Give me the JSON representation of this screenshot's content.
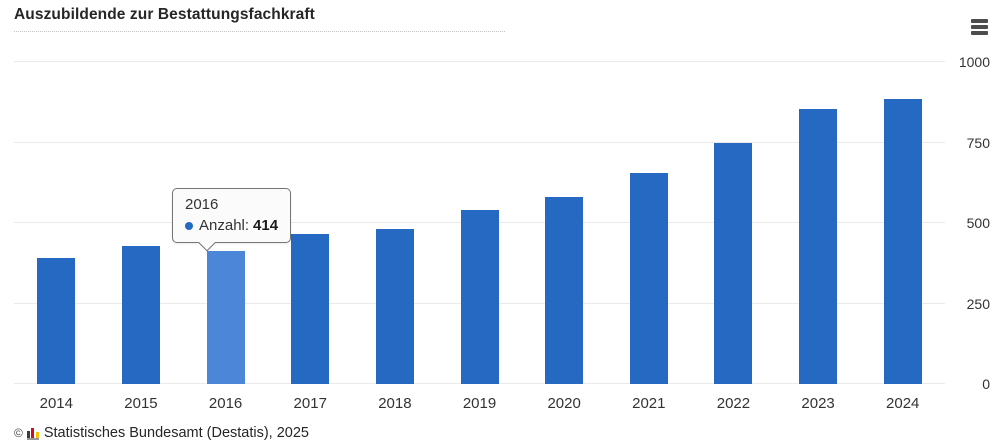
{
  "title": "Auszubildende zur Bestattungsfachkraft",
  "menu": {
    "icon": "hamburger-icon"
  },
  "tooltip": {
    "year": "2016",
    "series_label": "Anzahl:",
    "value": "414"
  },
  "footer": {
    "copyright": "©",
    "source": "Statistisches Bundesamt (Destatis), 2025"
  },
  "colors": {
    "bar": "#2569c3",
    "bar_highlight": "#4c86d9",
    "grid": "#eaeaea",
    "tooltip_marker": "#2569c3"
  },
  "chart_data": {
    "type": "bar",
    "title": "Auszubildende zur Bestattungsfachkraft",
    "categories": [
      "2014",
      "2015",
      "2016",
      "2017",
      "2018",
      "2019",
      "2020",
      "2021",
      "2022",
      "2023",
      "2024"
    ],
    "series": [
      {
        "name": "Anzahl",
        "values": [
          390,
          430,
          414,
          465,
          480,
          540,
          580,
          655,
          750,
          855,
          885
        ]
      }
    ],
    "exact_labeled_point": {
      "category": "2016",
      "value": 414
    },
    "highlight_index": 2,
    "ylim": [
      0,
      1000
    ],
    "yticks": [
      0,
      250,
      500,
      750,
      1000
    ],
    "grid": true,
    "y_axis_side": "right",
    "legend": "none"
  }
}
